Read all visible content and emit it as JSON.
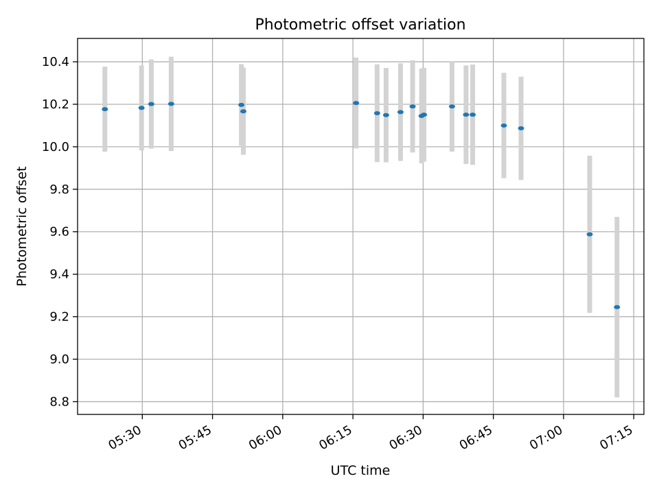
{
  "chart_data": {
    "type": "scatter",
    "title": "Photometric offset variation",
    "xlabel": "UTC time",
    "ylabel": "Photometric offset",
    "x_tick_labels": [
      "05:30",
      "05:45",
      "06:00",
      "06:15",
      "06:30",
      "06:45",
      "07:00",
      "07:15"
    ],
    "y_tick_labels": [
      "8.8",
      "9.0",
      "9.2",
      "9.4",
      "9.6",
      "9.8",
      "10.0",
      "10.2",
      "10.4"
    ],
    "xlim": [
      "05:16:10",
      "07:17:10"
    ],
    "ylim": [
      8.74,
      10.51
    ],
    "grid": true,
    "legend": "none",
    "colors": {
      "marker": "#1f77b4",
      "errorbar": "#d3d3d3",
      "grid": "#b0b0b0"
    },
    "points": [
      {
        "x": "05:22:00",
        "y": 10.177,
        "err": 0.2
      },
      {
        "x": "05:29:50",
        "y": 10.183,
        "err": 0.2
      },
      {
        "x": "05:31:55",
        "y": 10.201,
        "err": 0.21
      },
      {
        "x": "05:36:10",
        "y": 10.202,
        "err": 0.222
      },
      {
        "x": "05:51:10",
        "y": 10.197,
        "err": 0.192
      },
      {
        "x": "05:51:35",
        "y": 10.167,
        "err": 0.205
      },
      {
        "x": "06:15:40",
        "y": 10.206,
        "err": 0.214
      },
      {
        "x": "06:20:10",
        "y": 10.158,
        "err": 0.23
      },
      {
        "x": "06:22:05",
        "y": 10.149,
        "err": 0.222
      },
      {
        "x": "06:25:10",
        "y": 10.163,
        "err": 0.23
      },
      {
        "x": "06:27:45",
        "y": 10.19,
        "err": 0.217
      },
      {
        "x": "06:29:40",
        "y": 10.145,
        "err": 0.223
      },
      {
        "x": "06:30:10",
        "y": 10.151,
        "err": 0.221
      },
      {
        "x": "06:36:10",
        "y": 10.19,
        "err": 0.213
      },
      {
        "x": "06:39:10",
        "y": 10.151,
        "err": 0.232
      },
      {
        "x": "06:40:35",
        "y": 10.151,
        "err": 0.236
      },
      {
        "x": "06:47:15",
        "y": 10.1,
        "err": 0.248
      },
      {
        "x": "06:50:55",
        "y": 10.087,
        "err": 0.243
      },
      {
        "x": "07:05:35",
        "y": 9.588,
        "err": 0.37
      },
      {
        "x": "07:11:25",
        "y": 9.245,
        "err": 0.425
      }
    ]
  }
}
